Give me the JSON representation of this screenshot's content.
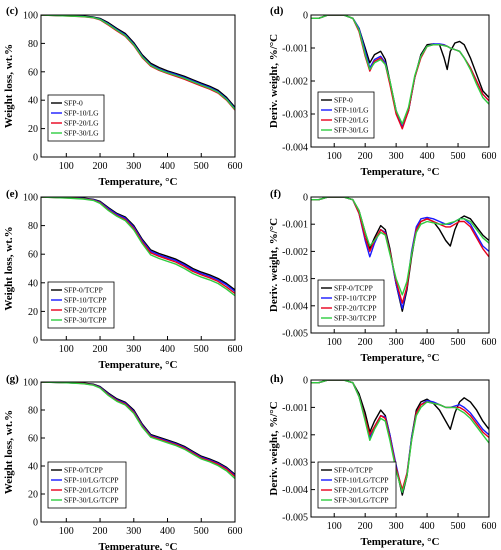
{
  "chart_data": [
    {
      "panel": "(c)",
      "type": "line",
      "xlabel": "Temperature, °C",
      "ylabel": "Weight loss, wt.%",
      "xlim": [
        25,
        600
      ],
      "ylim": [
        0,
        100
      ],
      "xticks": [
        100,
        200,
        300,
        400,
        500,
        600
      ],
      "yticks": [
        0,
        20,
        40,
        60,
        80,
        100
      ],
      "legend_position": "bottom-left",
      "x": [
        25,
        100,
        150,
        180,
        200,
        225,
        250,
        275,
        300,
        325,
        350,
        375,
        400,
        425,
        450,
        475,
        500,
        525,
        550,
        575,
        600
      ],
      "series": [
        {
          "name": "SFP-0",
          "color": "#000000",
          "y": [
            100,
            99.6,
            99.2,
            98.6,
            97.6,
            94.5,
            90.5,
            87,
            80.5,
            72,
            66,
            63,
            60.6,
            58.8,
            56.8,
            54.4,
            52,
            49.8,
            47,
            42,
            35
          ]
        },
        {
          "name": "SFP-10/LG",
          "color": "#1a1aff",
          "y": [
            100,
            99.5,
            99,
            98.3,
            97.1,
            93.7,
            89.7,
            86,
            79.5,
            71,
            65,
            62,
            59.8,
            58,
            56,
            53.6,
            51.2,
            49,
            46,
            41,
            34
          ]
        },
        {
          "name": "SFP-20/LG",
          "color": "#e8001c",
          "y": [
            100,
            99.4,
            98.8,
            98,
            96.6,
            92.8,
            88.8,
            85,
            78.5,
            70,
            64,
            61,
            58.8,
            56.8,
            54.8,
            52.4,
            50,
            47.8,
            45,
            40,
            33
          ]
        },
        {
          "name": "SFP-30/LG",
          "color": "#2ecc40",
          "y": [
            100,
            99.4,
            98.9,
            98.2,
            96.9,
            93.3,
            89.3,
            85.5,
            79,
            70.5,
            64.5,
            61.5,
            59.3,
            57.4,
            55.4,
            53,
            50.6,
            48.4,
            45.5,
            40.5,
            33.5
          ]
        }
      ]
    },
    {
      "panel": "(d)",
      "type": "line",
      "xlabel": "Temperature, °C",
      "ylabel": "Deriv. weight, %/°C",
      "xlim": [
        25,
        600
      ],
      "ylim": [
        -0.004,
        0
      ],
      "xticks": [
        100,
        200,
        300,
        400,
        500,
        600
      ],
      "yticks": [
        0,
        -0.001,
        -0.002,
        -0.003,
        -0.004
      ],
      "legend_position": "bottom-left",
      "x": [
        25,
        50,
        80,
        100,
        130,
        160,
        180,
        200,
        215,
        230,
        250,
        265,
        280,
        300,
        320,
        340,
        360,
        380,
        400,
        420,
        440,
        455,
        465,
        475,
        490,
        505,
        520,
        540,
        560,
        580,
        600
      ],
      "series": [
        {
          "name": "SFP-0",
          "color": "#000000",
          "y": [
            -0.0001,
            -0.0001,
            0,
            0,
            0,
            -0.0001,
            -0.0004,
            -0.001,
            -0.00145,
            -0.0012,
            -0.0011,
            -0.00135,
            -0.002,
            -0.0029,
            -0.0034,
            -0.0029,
            -0.0019,
            -0.0012,
            -0.0009,
            -0.00088,
            -0.0009,
            -0.0013,
            -0.00165,
            -0.0011,
            -0.00085,
            -0.0008,
            -0.0009,
            -0.0013,
            -0.0018,
            -0.0023,
            -0.0025
          ]
        },
        {
          "name": "SFP-10/LG",
          "color": "#1a1aff",
          "y": [
            -0.0001,
            -0.0001,
            0,
            0,
            0,
            -0.0001,
            -0.0004,
            -0.0011,
            -0.0016,
            -0.00135,
            -0.00125,
            -0.00145,
            -0.00205,
            -0.0029,
            -0.0034,
            -0.0029,
            -0.0019,
            -0.00125,
            -0.00095,
            -0.00088,
            -0.00088,
            -0.0009,
            -0.00095,
            -0.001,
            -0.00105,
            -0.0011,
            -0.0013,
            -0.0016,
            -0.002,
            -0.0024,
            -0.0026
          ]
        },
        {
          "name": "SFP-20/LG",
          "color": "#e8001c",
          "y": [
            -0.0001,
            -0.0001,
            0,
            0,
            0,
            -0.0001,
            -0.0005,
            -0.00125,
            -0.0017,
            -0.0014,
            -0.0013,
            -0.0015,
            -0.0021,
            -0.003,
            -0.00345,
            -0.0029,
            -0.0019,
            -0.0013,
            -0.00095,
            -0.0009,
            -0.0009,
            -0.00092,
            -0.00095,
            -0.001,
            -0.00105,
            -0.0011,
            -0.0013,
            -0.0016,
            -0.002,
            -0.0024,
            -0.0026
          ]
        },
        {
          "name": "SFP-30/LG",
          "color": "#2ecc40",
          "y": [
            -0.0001,
            -0.0001,
            0,
            0,
            0,
            -0.0001,
            -0.00045,
            -0.0012,
            -0.00165,
            -0.00145,
            -0.00135,
            -0.0015,
            -0.002,
            -0.0029,
            -0.0033,
            -0.0028,
            -0.00185,
            -0.00125,
            -0.00095,
            -0.0009,
            -0.0009,
            -0.00093,
            -0.00095,
            -0.001,
            -0.00105,
            -0.0011,
            -0.0013,
            -0.00165,
            -0.0021,
            -0.0025,
            -0.0027
          ]
        }
      ]
    },
    {
      "panel": "(e)",
      "type": "line",
      "xlabel": "Temperature, °C",
      "ylabel": "Weight loss, wt.%",
      "xlim": [
        25,
        600
      ],
      "ylim": [
        0,
        100
      ],
      "xticks": [
        100,
        200,
        300,
        400,
        500,
        600
      ],
      "yticks": [
        0,
        20,
        40,
        60,
        80,
        100
      ],
      "legend_position": "bottom-left",
      "x": [
        25,
        100,
        150,
        180,
        200,
        225,
        250,
        275,
        300,
        325,
        350,
        375,
        400,
        425,
        450,
        475,
        500,
        525,
        550,
        575,
        600
      ],
      "series": [
        {
          "name": "SFP-0/TCPP",
          "color": "#000000",
          "y": [
            100,
            99.6,
            99.2,
            98.4,
            97,
            92.5,
            88.5,
            86,
            80,
            70.5,
            63,
            60.5,
            58.5,
            56.5,
            53.5,
            50,
            47.5,
            45.5,
            43,
            39.5,
            35
          ]
        },
        {
          "name": "SFP-10/TCPP",
          "color": "#1a1aff",
          "y": [
            100,
            99.5,
            99,
            98.1,
            96.5,
            91.8,
            87.8,
            85.2,
            79,
            69.5,
            62,
            59.5,
            57.5,
            55.5,
            52.5,
            49,
            46.5,
            44.5,
            42,
            38.5,
            34
          ]
        },
        {
          "name": "SFP-20/TCPP",
          "color": "#e8001c",
          "y": [
            100,
            99.4,
            98.8,
            97.8,
            96,
            91,
            87,
            84.3,
            78,
            68.5,
            61,
            58.5,
            56.5,
            54.5,
            51.5,
            48,
            45.5,
            43.5,
            41,
            37,
            32.5
          ]
        },
        {
          "name": "SFP-30/TCPP",
          "color": "#2ecc40",
          "y": [
            100,
            99.3,
            98.6,
            97.6,
            95.6,
            90.5,
            86.5,
            83.5,
            77,
            67.5,
            59.5,
            57,
            55,
            53,
            50,
            46.5,
            44,
            42,
            39.5,
            35.5,
            31
          ]
        }
      ]
    },
    {
      "panel": "(f)",
      "type": "line",
      "xlabel": "Temperature, °C",
      "ylabel": "Deriv. weight, %/°C",
      "xlim": [
        25,
        600
      ],
      "ylim": [
        -0.005,
        0
      ],
      "xticks": [
        100,
        200,
        300,
        400,
        500,
        600
      ],
      "yticks": [
        0,
        -0.001,
        -0.002,
        -0.003,
        -0.004,
        -0.005
      ],
      "legend_position": "bottom-left",
      "x": [
        25,
        50,
        80,
        100,
        130,
        160,
        180,
        200,
        215,
        230,
        250,
        265,
        280,
        300,
        320,
        335,
        350,
        365,
        380,
        400,
        420,
        440,
        460,
        475,
        490,
        505,
        520,
        540,
        560,
        580,
        600
      ],
      "series": [
        {
          "name": "SFP-0/TCPP",
          "color": "#000000",
          "y": [
            -0.0001,
            -0.0001,
            0,
            0,
            0,
            -0.0001,
            -0.0005,
            -0.0013,
            -0.0019,
            -0.0015,
            -0.00105,
            -0.0012,
            -0.0019,
            -0.0032,
            -0.0042,
            -0.0034,
            -0.0022,
            -0.0012,
            -0.0009,
            -0.0008,
            -0.0009,
            -0.0012,
            -0.0016,
            -0.0018,
            -0.0012,
            -0.0008,
            -0.0007,
            -0.0008,
            -0.0011,
            -0.0014,
            -0.0016
          ]
        },
        {
          "name": "SFP-10/TCPP",
          "color": "#1a1aff",
          "y": [
            -0.0001,
            -0.0001,
            0,
            0,
            0,
            -0.0001,
            -0.0006,
            -0.0016,
            -0.0022,
            -0.0017,
            -0.0012,
            -0.0013,
            -0.002,
            -0.0032,
            -0.0041,
            -0.0033,
            -0.002,
            -0.0011,
            -0.0008,
            -0.00075,
            -0.0008,
            -0.0009,
            -0.001,
            -0.001,
            -0.0009,
            -0.0008,
            -0.0008,
            -0.001,
            -0.0014,
            -0.0018,
            -0.002
          ]
        },
        {
          "name": "SFP-20/TCPP",
          "color": "#e8001c",
          "y": [
            -0.0001,
            -0.0001,
            0,
            0,
            0,
            -0.0001,
            -0.0006,
            -0.0015,
            -0.002,
            -0.0016,
            -0.0012,
            -0.00135,
            -0.002,
            -0.0031,
            -0.0039,
            -0.0033,
            -0.0021,
            -0.0012,
            -0.0009,
            -0.0008,
            -0.0009,
            -0.001,
            -0.0011,
            -0.0011,
            -0.001,
            -0.0009,
            -0.0009,
            -0.0011,
            -0.0015,
            -0.0019,
            -0.0022
          ]
        },
        {
          "name": "SFP-30/TCPP",
          "color": "#2ecc40",
          "y": [
            -0.0001,
            -0.0001,
            0,
            0,
            0,
            -0.0001,
            -0.0005,
            -0.0013,
            -0.0018,
            -0.0016,
            -0.0013,
            -0.0014,
            -0.0021,
            -0.003,
            -0.0036,
            -0.0031,
            -0.0021,
            -0.0013,
            -0.001,
            -0.0009,
            -0.00095,
            -0.001,
            -0.001,
            -0.00095,
            -0.0009,
            -0.0008,
            -0.0008,
            -0.0009,
            -0.0012,
            -0.0015,
            -0.0017
          ]
        }
      ]
    },
    {
      "panel": "(g)",
      "type": "line",
      "xlabel": "Temperature, °C",
      "ylabel": "Weight loss, wt.%",
      "xlim": [
        25,
        600
      ],
      "ylim": [
        0,
        100
      ],
      "xticks": [
        100,
        200,
        300,
        400,
        500,
        600
      ],
      "yticks": [
        0,
        20,
        40,
        60,
        80,
        100
      ],
      "legend_position": "bottom-left",
      "x": [
        25,
        100,
        150,
        180,
        200,
        225,
        250,
        275,
        300,
        325,
        350,
        375,
        400,
        425,
        450,
        475,
        500,
        525,
        550,
        575,
        600
      ],
      "series": [
        {
          "name": "SFP-0/TCPP",
          "color": "#000000",
          "y": [
            100,
            99.6,
            99.2,
            98.4,
            96.8,
            92,
            88,
            85.5,
            80,
            70,
            62.5,
            60.5,
            58.5,
            56.5,
            54,
            50.5,
            47,
            45,
            42.5,
            39,
            34
          ]
        },
        {
          "name": "SFP-10/LG/TCPP",
          "color": "#1a1aff",
          "y": [
            100,
            99.5,
            99,
            98.1,
            96.3,
            91.3,
            87.3,
            84.8,
            79,
            69.2,
            61.8,
            59.8,
            57.8,
            55.8,
            53.3,
            49.8,
            46.3,
            44.3,
            41.8,
            38.3,
            33.2
          ]
        },
        {
          "name": "SFP-20/LG/TCPP",
          "color": "#e8001c",
          "y": [
            100,
            99.5,
            98.9,
            97.9,
            96,
            90.8,
            86.8,
            84.2,
            78.3,
            68.5,
            61.2,
            59.2,
            57.2,
            55.2,
            52.7,
            49.2,
            45.7,
            43.7,
            41.2,
            37.7,
            32.5
          ]
        },
        {
          "name": "SFP-30/LG/TCPP",
          "color": "#2ecc40",
          "y": [
            100,
            99.4,
            98.8,
            97.7,
            95.7,
            90.3,
            86.2,
            83.6,
            77.6,
            67.8,
            60.6,
            58.6,
            56.6,
            54.6,
            52,
            48.5,
            45,
            43,
            40.3,
            36.5,
            31
          ]
        }
      ]
    },
    {
      "panel": "(h)",
      "type": "line",
      "xlabel": "Temperature, °C",
      "ylabel": "Deriv. weight, %/°C",
      "xlim": [
        25,
        600
      ],
      "ylim": [
        -0.005,
        0
      ],
      "xticks": [
        100,
        200,
        300,
        400,
        500,
        600
      ],
      "yticks": [
        0,
        -0.001,
        -0.002,
        -0.003,
        -0.004,
        -0.005
      ],
      "legend_position": "bottom-left",
      "x": [
        25,
        50,
        80,
        100,
        130,
        160,
        180,
        200,
        215,
        230,
        250,
        265,
        280,
        300,
        320,
        335,
        350,
        365,
        380,
        400,
        420,
        440,
        460,
        475,
        490,
        505,
        520,
        540,
        560,
        580,
        600
      ],
      "series": [
        {
          "name": "SFP-0/TCPP",
          "color": "#000000",
          "y": [
            -0.0001,
            -0.0001,
            0,
            0,
            0,
            -0.0001,
            -0.0005,
            -0.0012,
            -0.0019,
            -0.0015,
            -0.0011,
            -0.0013,
            -0.002,
            -0.0032,
            -0.0042,
            -0.0035,
            -0.0021,
            -0.0011,
            -0.0008,
            -0.0007,
            -0.00085,
            -0.0011,
            -0.0015,
            -0.0018,
            -0.0012,
            -0.0008,
            -0.00065,
            -0.0008,
            -0.0011,
            -0.0015,
            -0.0018
          ]
        },
        {
          "name": "SFP-10/LG/TCPP",
          "color": "#1a1aff",
          "y": [
            -0.0001,
            -0.0001,
            0,
            0,
            0,
            -0.0001,
            -0.0006,
            -0.0014,
            -0.0021,
            -0.0017,
            -0.0013,
            -0.00135,
            -0.002,
            -0.0031,
            -0.0041,
            -0.0034,
            -0.0021,
            -0.0012,
            -0.0009,
            -0.00075,
            -0.0008,
            -0.0009,
            -0.001,
            -0.001,
            -0.00095,
            -0.0009,
            -0.001,
            -0.0012,
            -0.0015,
            -0.0018,
            -0.002
          ]
        },
        {
          "name": "SFP-20/LG/TCPP",
          "color": "#e8001c",
          "y": [
            -0.0001,
            -0.0001,
            0,
            0,
            0,
            -0.0001,
            -0.0006,
            -0.0014,
            -0.002,
            -0.0017,
            -0.0013,
            -0.0014,
            -0.0021,
            -0.0032,
            -0.004,
            -0.0034,
            -0.0022,
            -0.0012,
            -0.0009,
            -0.0008,
            -0.00085,
            -0.0009,
            -0.001,
            -0.001,
            -0.001,
            -0.001,
            -0.0011,
            -0.0013,
            -0.0016,
            -0.0019,
            -0.0021
          ]
        },
        {
          "name": "SFP-30/LG/TCPP",
          "color": "#2ecc40",
          "y": [
            -0.0001,
            -0.0001,
            0,
            0,
            0,
            -0.0001,
            -0.0006,
            -0.0015,
            -0.0022,
            -0.0018,
            -0.0014,
            -0.0015,
            -0.0022,
            -0.0033,
            -0.0041,
            -0.0035,
            -0.0022,
            -0.0013,
            -0.001,
            -0.0008,
            -0.00085,
            -0.0009,
            -0.001,
            -0.001,
            -0.001,
            -0.0011,
            -0.0012,
            -0.0014,
            -0.0017,
            -0.002,
            -0.0023
          ]
        }
      ]
    }
  ]
}
